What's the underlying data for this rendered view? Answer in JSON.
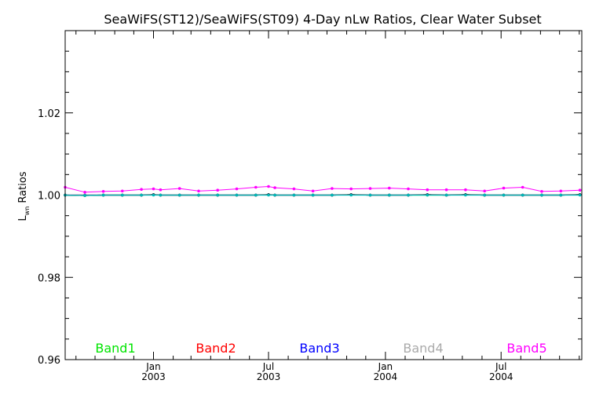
{
  "chart_data": {
    "type": "line",
    "title": "SeaWiFS(ST12)/SeaWiFS(ST09) 4-Day nLw Ratios, Clear Water Subset",
    "ylabel": "L_wn Ratios",
    "ylabel_main": "L",
    "ylabel_sub": "wn",
    "ylabel_rest": " Ratios",
    "ylim": [
      0.96,
      1.04
    ],
    "xlim": [
      "2002-08-15",
      "2004-11-05"
    ],
    "y_ticks": [
      {
        "value": 0.96,
        "label": "0.96"
      },
      {
        "value": 0.98,
        "label": "0.98"
      },
      {
        "value": 1.0,
        "label": "1.00"
      },
      {
        "value": 1.02,
        "label": "1.02"
      }
    ],
    "x_ticks": [
      {
        "date": "2003-01-01",
        "month": "Jan",
        "year": "2003"
      },
      {
        "date": "2003-07-01",
        "month": "Jul",
        "year": "2003"
      },
      {
        "date": "2004-01-01",
        "month": "Jan",
        "year": "2004"
      },
      {
        "date": "2004-07-01",
        "month": "Jul",
        "year": "2004"
      }
    ],
    "x_minor_ticks": [
      "2002-09-01",
      "2002-10-01",
      "2002-11-01",
      "2002-12-01",
      "2003-02-01",
      "2003-03-01",
      "2003-04-01",
      "2003-05-01",
      "2003-06-01",
      "2003-08-01",
      "2003-09-01",
      "2003-10-01",
      "2003-11-01",
      "2003-12-01",
      "2004-02-01",
      "2004-03-01",
      "2004-04-01",
      "2004-05-01",
      "2004-06-01",
      "2004-08-01",
      "2004-09-01",
      "2004-10-01",
      "2004-11-01"
    ],
    "x": [
      "2002-08-15",
      "2002-09-15",
      "2002-10-14",
      "2002-11-13",
      "2002-12-13",
      "2003-01-01",
      "2003-01-12",
      "2003-02-11",
      "2003-03-13",
      "2003-04-12",
      "2003-05-12",
      "2003-06-11",
      "2003-07-01",
      "2003-07-11",
      "2003-08-10",
      "2003-09-09",
      "2003-10-09",
      "2003-11-08",
      "2003-12-08",
      "2004-01-07",
      "2004-02-06",
      "2004-03-07",
      "2004-04-06",
      "2004-05-06",
      "2004-06-05",
      "2004-07-05",
      "2004-08-04",
      "2004-09-03",
      "2004-10-03",
      "2004-11-02"
    ],
    "series": [
      {
        "name": "Band1",
        "color": "#00e400",
        "values": [
          1.0,
          0.9999,
          1.0,
          1.0,
          1.0,
          1.0001,
          1.0,
          1.0,
          1.0,
          1.0,
          1.0,
          1.0,
          1.0001,
          1.0,
          1.0,
          1.0,
          1.0,
          1.0001,
          1.0,
          1.0,
          1.0,
          1.0,
          1.0,
          1.0001,
          1.0,
          1.0,
          1.0,
          1.0,
          1.0,
          1.0001
        ]
      },
      {
        "name": "Band2",
        "color": "#ff0000",
        "values": [
          1.0,
          1.0,
          1.0,
          1.0,
          1.0,
          1.0001,
          1.0,
          1.0,
          1.0,
          1.0,
          1.0,
          1.0,
          1.0001,
          1.0,
          1.0,
          1.0,
          1.0,
          1.0001,
          1.0,
          1.0,
          1.0,
          1.0001,
          1.0,
          1.0001,
          1.0,
          1.0,
          1.0,
          1.0,
          1.0,
          1.0001
        ]
      },
      {
        "name": "Band3",
        "color": "#0000ff",
        "values": [
          1.0,
          1.0,
          1.0,
          1.0,
          1.0,
          1.0001,
          1.0,
          1.0,
          1.0,
          1.0,
          1.0,
          1.0,
          1.0001,
          1.0,
          1.0,
          1.0,
          1.0,
          1.0001,
          1.0,
          1.0,
          1.0,
          1.0001,
          1.0,
          1.0001,
          1.0,
          1.0,
          1.0,
          1.0,
          1.0,
          1.0001
        ]
      },
      {
        "name": "Band4",
        "color": "#aaaaaa",
        "values": [
          1.0,
          1.0,
          1.0,
          1.0,
          1.0,
          1.0001,
          1.0,
          1.0,
          1.0,
          1.0,
          1.0,
          1.0,
          1.0001,
          1.0,
          1.0,
          1.0,
          1.0,
          1.0001,
          1.0,
          1.0,
          1.0,
          1.0001,
          1.0,
          1.0001,
          1.0,
          1.0,
          1.0,
          1.0,
          1.0,
          1.0001
        ]
      },
      {
        "name": "Band5",
        "color": "#ff00ff",
        "values": [
          1.0019,
          1.0007,
          1.0009,
          1.001,
          1.0014,
          1.0015,
          1.0013,
          1.0016,
          1.001,
          1.0012,
          1.0015,
          1.0019,
          1.0021,
          1.0018,
          1.0015,
          1.001,
          1.0016,
          1.0015,
          1.0016,
          1.0017,
          1.0015,
          1.0013,
          1.0013,
          1.0013,
          1.001,
          1.0017,
          1.0019,
          1.0009,
          1.001,
          1.0012
        ]
      },
      {
        "name": "",
        "color": "#000000",
        "values": [
          1.0,
          0.9999,
          1.0,
          1.0,
          1.0,
          1.0001,
          1.0,
          1.0,
          1.0,
          1.0,
          1.0,
          1.0,
          1.0001,
          1.0,
          1.0,
          1.0,
          1.0,
          1.0001,
          1.0,
          1.0,
          1.0,
          1.0001,
          1.0,
          1.0001,
          1.0,
          1.0,
          1.0,
          1.0,
          1.0,
          1.0001
        ]
      },
      {
        "name": "",
        "color": "#00b8b8",
        "values": [
          1.0,
          0.9999,
          1.0,
          1.0,
          1.0,
          1.0,
          1.0,
          1.0,
          1.0,
          1.0,
          1.0,
          1.0,
          1.0,
          1.0,
          1.0,
          1.0,
          1.0,
          1.0,
          1.0,
          1.0,
          1.0,
          1.0,
          1.0,
          1.0,
          1.0,
          1.0,
          1.0,
          1.0,
          1.0,
          1.0
        ]
      }
    ],
    "legend": [
      {
        "label": "Band1",
        "color": "#00e400"
      },
      {
        "label": "Band2",
        "color": "#ff0000"
      },
      {
        "label": "Band3",
        "color": "#0000ff"
      },
      {
        "label": "Band4",
        "color": "#aaaaaa"
      },
      {
        "label": "Band5",
        "color": "#ff00ff"
      }
    ],
    "legend_position": "bottom",
    "grid": false
  }
}
